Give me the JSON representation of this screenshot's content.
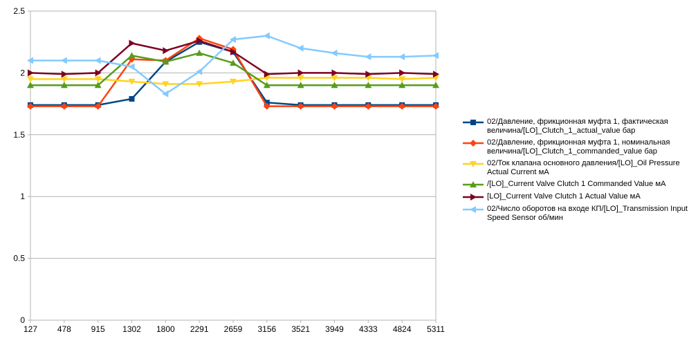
{
  "chart_data": {
    "type": "line",
    "title": "",
    "xlabel": "",
    "ylabel": "",
    "categories": [
      "127",
      "478",
      "915",
      "1302",
      "1800",
      "2291",
      "2659",
      "3156",
      "3521",
      "3949",
      "4333",
      "4824",
      "5311"
    ],
    "ylim": [
      0,
      2.5
    ],
    "yticks": [
      "0",
      "0.5",
      "1",
      "1.5",
      "2",
      "2.5"
    ],
    "grid": "horizontal",
    "legend_position": "right",
    "series": [
      {
        "name": "02/Давление, фрикционная муфта 1, фактическая величина/[LO]_Clutch_1_actual_value бар",
        "color": "#004586",
        "marker": "square",
        "values": [
          1.74,
          1.74,
          1.74,
          1.79,
          2.09,
          2.25,
          2.17,
          1.76,
          1.74,
          1.74,
          1.74,
          1.74,
          1.74
        ]
      },
      {
        "name": "02/Давление, фрикционная муфта 1, номинальная величина/[LO]_Clutch_1_commanded_value бар",
        "color": "#ff420e",
        "marker": "diamond",
        "values": [
          1.73,
          1.73,
          1.73,
          2.11,
          2.1,
          2.28,
          2.19,
          1.73,
          1.73,
          1.73,
          1.73,
          1.73,
          1.73
        ]
      },
      {
        "name": "02/Ток клапана основного давления/[LO]_Oil Pressure Actual Current мА",
        "color": "#ffd320",
        "marker": "triangle-down",
        "values": [
          1.95,
          1.95,
          1.95,
          1.93,
          1.91,
          1.91,
          1.93,
          1.96,
          1.96,
          1.96,
          1.96,
          1.95,
          1.96
        ]
      },
      {
        "name": "/[LO]_Current Valve Clutch 1 Commanded Value мА",
        "color": "#579d1c",
        "marker": "triangle-up",
        "values": [
          1.9,
          1.9,
          1.9,
          2.14,
          2.09,
          2.16,
          2.08,
          1.9,
          1.9,
          1.9,
          1.9,
          1.9,
          1.9
        ]
      },
      {
        "name": "[LO]_Current Valve Clutch 1 Actual Value мА",
        "color": "#7e0021",
        "marker": "triangle-right",
        "values": [
          2.0,
          1.99,
          2.0,
          2.24,
          2.18,
          2.26,
          2.17,
          1.99,
          2.0,
          2.0,
          1.99,
          2.0,
          1.99
        ]
      },
      {
        "name": "02/Число оборотов на входе КП/[LO]_Transmission Input Speed Sensor об/мин",
        "color": "#83caff",
        "marker": "triangle-left",
        "values": [
          2.1,
          2.1,
          2.1,
          2.05,
          1.83,
          2.01,
          2.27,
          2.3,
          2.2,
          2.16,
          2.13,
          2.13,
          2.14
        ]
      }
    ]
  }
}
